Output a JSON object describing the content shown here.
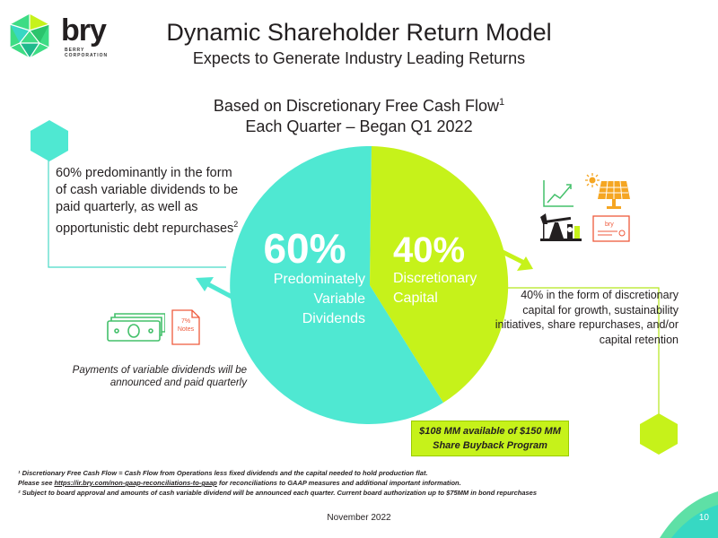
{
  "brand": {
    "name": "bry",
    "tagline": "BERRY CORPORATION"
  },
  "header": {
    "title": "Dynamic Shareholder Return Model",
    "subtitle": "Expects to Generate Industry Leading Returns"
  },
  "basis": {
    "line1": "Based on Discretionary Free Cash Flow",
    "line1_sup": "1",
    "line2": "Each Quarter – Began Q1 2022"
  },
  "pie": {
    "dividends": {
      "pct": "60%",
      "line1": "Predominately",
      "line2": "Variable",
      "line3": "Dividends",
      "color": "#4fe8d2"
    },
    "discretionary": {
      "pct": "40%",
      "line1": "Discretionary",
      "line2": "Capital",
      "color": "#c6f21a"
    }
  },
  "left_note": {
    "text": "60% predominantly in the form of cash variable dividends to be paid quarterly, as well as opportunistic debt repurchases",
    "sup": "2"
  },
  "right_note": "40% in the form of discretionary capital for growth, sustainability initiatives, share repurchases, and/or capital retention",
  "payments_note": "Payments of variable dividends will be announced and paid quarterly",
  "notes_icon": {
    "line1": "7%",
    "line2": "Notes"
  },
  "buyback": {
    "line1": "$108 MM available of $150 MM",
    "line2": "Share Buyback Program"
  },
  "footnotes": {
    "f1": "¹ Discretionary Free Cash Flow = Cash Flow from Operations less fixed dividends and the capital needed to hold production flat.",
    "f1b_prefix": "Please see ",
    "f1b_link": "https://ir.bry.com/non-gaap-reconciliations-to-gaap",
    "f1b_suffix": " for reconciliations to GAAP measures and additional important information.",
    "f2": "² Subject to board approval and amounts of cash variable dividend will be announced each quarter. Current board authorization up to $75MM in bond repurchases"
  },
  "footer": {
    "date": "November 2022",
    "page": "10"
  },
  "colors": {
    "teal": "#4fe8d2",
    "lime": "#c6f21a",
    "line_teal": "#49d9c6",
    "line_lime": "#b4e61c"
  },
  "icons": [
    "logo-hex-icon",
    "growth-chart-icon",
    "sun-icon",
    "solar-panel-icon",
    "oil-pumpjack-icon",
    "bry-card-icon",
    "cash-bills-icon",
    "notes-document-icon",
    "hexagon-icon"
  ]
}
